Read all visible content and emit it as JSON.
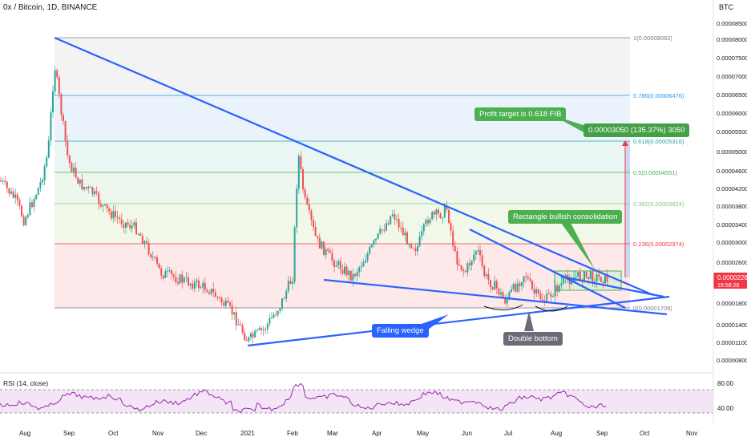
{
  "header": {
    "title": "0x / Bitcoin, 1D, BINANCE",
    "currency": "BTC"
  },
  "price_axis": {
    "current_price": "0.00002265",
    "countdown": "19:58:28",
    "ticks": [
      "0.00008800",
      "0.00008500",
      "0.00008000",
      "0.00007500",
      "0.00007000",
      "0.00006500",
      "0.00006000",
      "0.00005500",
      "0.00005000",
      "0.00004600",
      "0.00004200",
      "0.00003800",
      "0.00003400",
      "0.00003000",
      "0.00002600",
      "0.00002200",
      "0.00001800",
      "0.00001400",
      "0.00001100",
      "0.00000800"
    ]
  },
  "time_axis": [
    "Aug",
    "Sep",
    "Oct",
    "Nov",
    "Dec",
    "2021",
    "Feb",
    "Mar",
    "Apr",
    "May",
    "Jun",
    "Jul",
    "Aug",
    "Sep",
    "Oct",
    "Nov"
  ],
  "fib_levels": [
    {
      "ratio": "1",
      "label": "1(0.00008082)",
      "color": "#787b86"
    },
    {
      "ratio": "0.786",
      "label": "0.786(0.00006476)",
      "color": "#2196f3"
    },
    {
      "ratio": "0.618",
      "label": "0.618(0.00005316)",
      "color": "#26a69a"
    },
    {
      "ratio": "0.5",
      "label": "0.5(0.00004551)",
      "color": "#4caf50"
    },
    {
      "ratio": "0.382",
      "label": "0.382(0.00003824)",
      "color": "#81c784"
    },
    {
      "ratio": "0.236",
      "label": "0.236(0.00002974)",
      "color": "#f23645"
    },
    {
      "ratio": "0",
      "label": "0(0.00001709)",
      "color": "#787b86"
    }
  ],
  "annotations": {
    "profit_target": "Profit target is 0.618 FIB",
    "target_measure": "0.00003050 (135.37%) 3050",
    "rectangle": "Rectangle bullish consolidation",
    "falling_wedge": "Falling wedge",
    "double_bottom": "Double bottom"
  },
  "rsi": {
    "label": "RSI (14, close)",
    "upper": "80.00",
    "lower": "40.00"
  },
  "colors": {
    "up": "#26a69a",
    "down": "#ef5350",
    "trendline": "#2962ff",
    "rsi": "#9c27b0"
  },
  "chart_data": {
    "type": "candlestick",
    "title": "0x / Bitcoin, 1D, BINANCE",
    "y_unit": "BTC",
    "ylim": [
      7e-06,
      9.2e-05
    ],
    "x": [
      "Aug",
      "Sep",
      "Oct",
      "Nov",
      "Dec",
      "2021",
      "Feb",
      "Mar",
      "Apr",
      "May",
      "Jun",
      "Jul",
      "Aug",
      "Sep"
    ],
    "approx_close": [
      4.35e-05,
      4.25e-05,
      3.2e-05,
      2.1e-05,
      1.35e-05,
      1.1e-05,
      4.1e-05,
      2.6e-05,
      3.8e-05,
      3.35e-05,
      2.3e-05,
      2.05e-05,
      2.35e-05,
      2.35e-05
    ],
    "rsi_range": [
      0,
      100
    ]
  }
}
